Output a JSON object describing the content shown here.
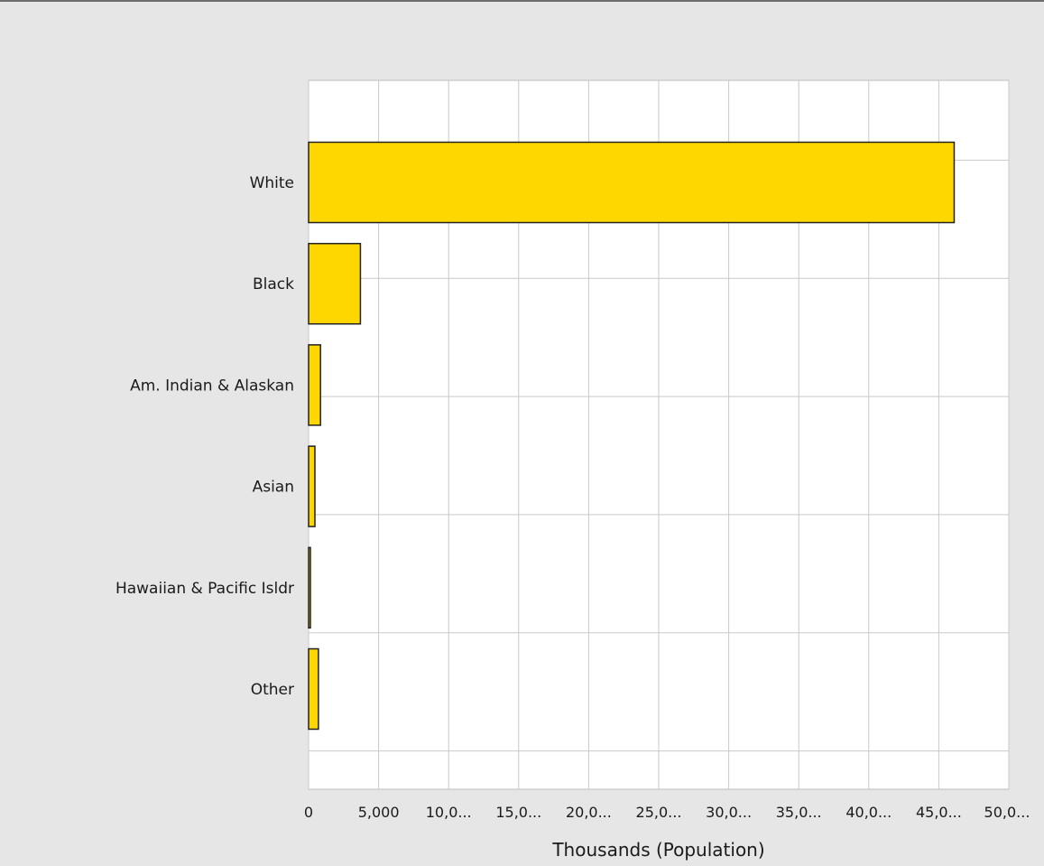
{
  "chart_data": {
    "type": "bar",
    "orientation": "horizontal",
    "categories": [
      "White",
      "Black",
      "Am. Indian & Alaskan",
      "Asian",
      "Hawaiian & Pacific Isldr",
      "Other"
    ],
    "values": [
      46100,
      3700,
      850,
      450,
      100,
      700
    ],
    "xlabel": "Thousands (Population)",
    "ylabel": "",
    "xlim": [
      0,
      50000
    ],
    "x_ticks": [
      0,
      5000,
      10000,
      15000,
      20000,
      25000,
      30000,
      35000,
      40000,
      45000,
      50000
    ],
    "x_tick_labels": [
      "0",
      "5,000",
      "10,0...",
      "15,0...",
      "20,0...",
      "25,0...",
      "30,0...",
      "35,0...",
      "40,0...",
      "45,0...",
      "50,0..."
    ],
    "grid": true,
    "bar_color": "#ffd700",
    "legend": "none"
  }
}
